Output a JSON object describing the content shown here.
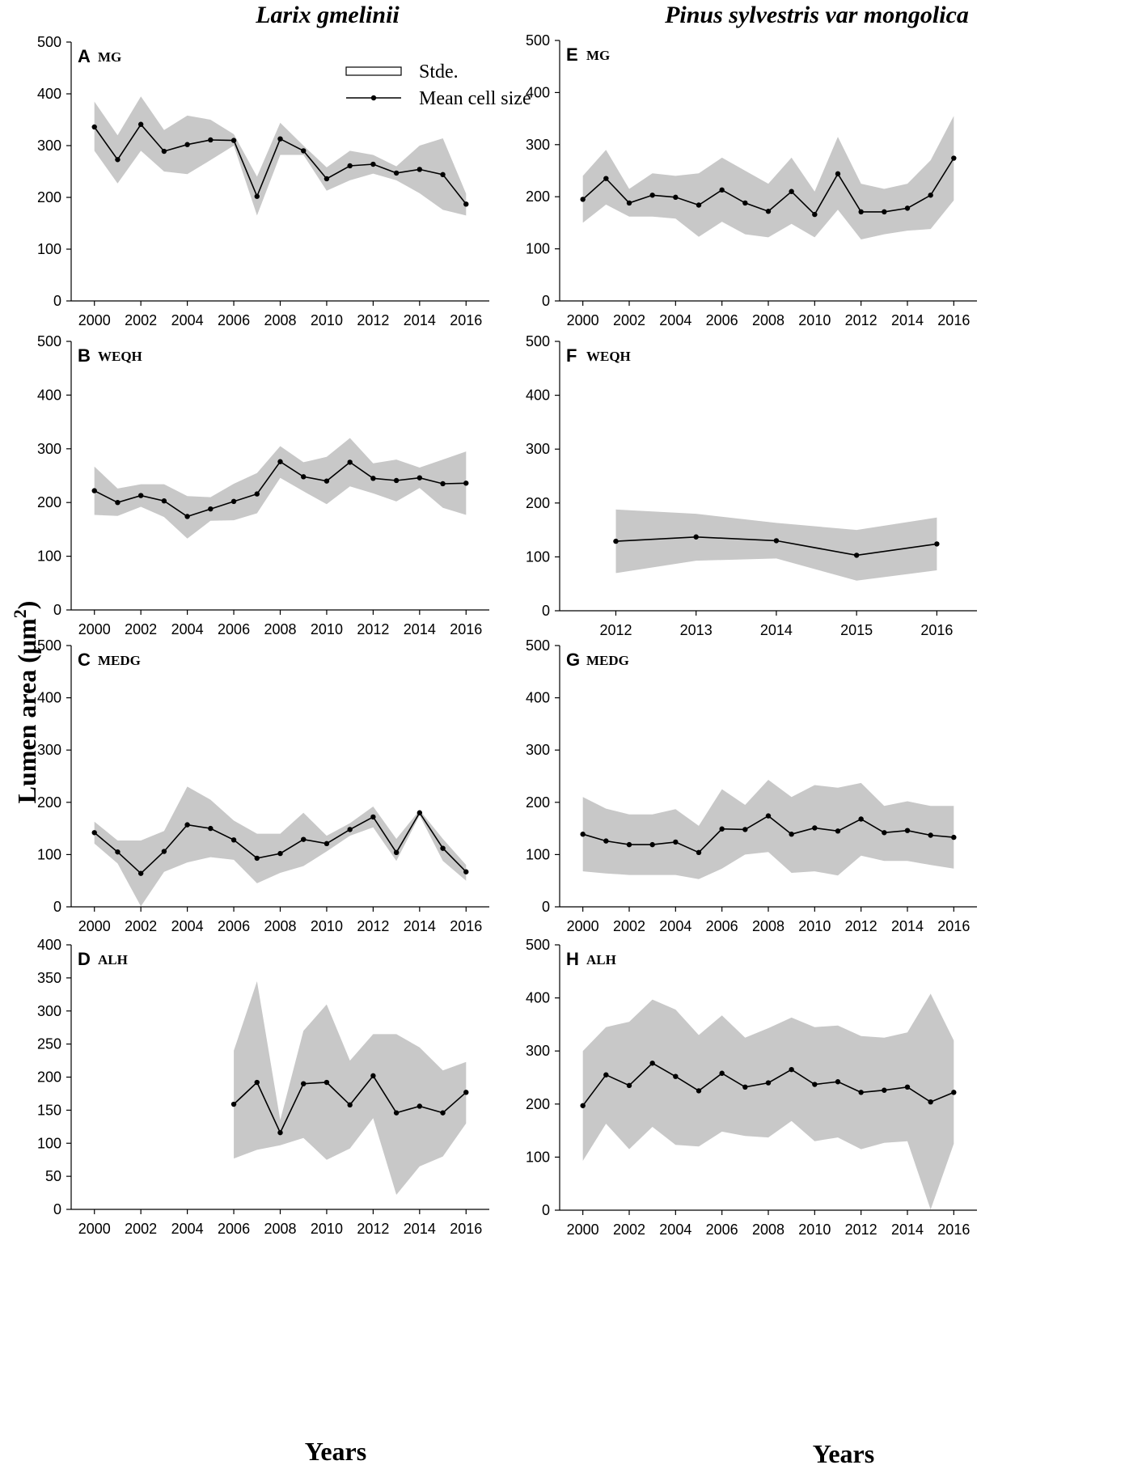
{
  "figure": {
    "column_titles": [
      "Larix gmelinii",
      "Pinus sylvestris var mongolica"
    ],
    "ylabel_text": "Lumen area (μm",
    "ylabel_sup": "2",
    "ylabel_close": ")",
    "xlabel": "Years",
    "legend": {
      "band_label": "Stde.",
      "line_label": "Mean cell size"
    }
  },
  "chart_data": [
    {
      "id": "A",
      "letter": "A",
      "site": "MG",
      "species": "Larix gmelinii",
      "type": "line",
      "xlim": [
        1999,
        2017
      ],
      "ylim": [
        0,
        500
      ],
      "xticks": [
        2000,
        2002,
        2004,
        2006,
        2008,
        2010,
        2012,
        2014,
        2016
      ],
      "yticks": [
        0,
        100,
        200,
        300,
        400,
        500
      ],
      "x": [
        2000,
        2001,
        2002,
        2003,
        2004,
        2005,
        2006,
        2007,
        2008,
        2009,
        2010,
        2011,
        2012,
        2013,
        2014,
        2015,
        2016
      ],
      "mean": [
        336,
        273,
        341,
        289,
        302,
        311,
        310,
        202,
        313,
        290,
        236,
        261,
        264,
        247,
        254,
        244,
        187
      ],
      "upper": [
        385,
        320,
        395,
        330,
        358,
        350,
        322,
        240,
        344,
        300,
        258,
        290,
        282,
        260,
        300,
        314,
        207
      ],
      "lower": [
        290,
        227,
        290,
        250,
        245,
        272,
        300,
        165,
        282,
        282,
        213,
        233,
        246,
        233,
        208,
        176,
        165
      ]
    },
    {
      "id": "B",
      "letter": "B",
      "site": "WEQH",
      "species": "Larix gmelinii",
      "type": "line",
      "xlim": [
        1999,
        2017
      ],
      "ylim": [
        0,
        500
      ],
      "xticks": [
        2000,
        2002,
        2004,
        2006,
        2008,
        2010,
        2012,
        2014,
        2016
      ],
      "yticks": [
        0,
        100,
        200,
        300,
        400,
        500
      ],
      "x": [
        2000,
        2001,
        2002,
        2003,
        2004,
        2005,
        2006,
        2007,
        2008,
        2009,
        2010,
        2011,
        2012,
        2013,
        2014,
        2015,
        2016
      ],
      "mean": [
        222,
        200,
        213,
        203,
        174,
        188,
        202,
        216,
        276,
        248,
        240,
        275,
        245,
        241,
        246,
        235,
        236
      ],
      "upper": [
        267,
        226,
        234,
        234,
        212,
        210,
        235,
        255,
        305,
        275,
        285,
        320,
        273,
        280,
        265,
        280,
        295
      ],
      "lower": [
        177,
        175,
        192,
        173,
        133,
        166,
        167,
        180,
        246,
        221,
        197,
        230,
        217,
        202,
        227,
        190,
        177
      ]
    },
    {
      "id": "C",
      "letter": "C",
      "site": "MEDG",
      "species": "Larix gmelinii",
      "type": "line",
      "xlim": [
        1999,
        2017
      ],
      "ylim": [
        0,
        500
      ],
      "xticks": [
        2000,
        2002,
        2004,
        2006,
        2008,
        2010,
        2012,
        2014,
        2016
      ],
      "yticks": [
        0,
        100,
        200,
        300,
        400,
        500
      ],
      "x": [
        2000,
        2001,
        2002,
        2003,
        2004,
        2005,
        2006,
        2007,
        2008,
        2009,
        2010,
        2011,
        2012,
        2013,
        2014,
        2015,
        2016
      ],
      "mean": [
        142,
        105,
        64,
        106,
        157,
        150,
        128,
        93,
        102,
        129,
        121,
        148,
        172,
        104,
        180,
        112,
        67
      ],
      "upper": [
        163,
        127,
        127,
        145,
        230,
        205,
        165,
        140,
        140,
        180,
        136,
        160,
        192,
        130,
        185,
        130,
        80
      ],
      "lower": [
        121,
        83,
        1,
        67,
        85,
        95,
        90,
        45,
        65,
        78,
        106,
        136,
        152,
        88,
        175,
        88,
        50
      ]
    },
    {
      "id": "D",
      "letter": "D",
      "site": "ALH",
      "species": "Larix gmelinii",
      "type": "line",
      "xlim": [
        1999,
        2017
      ],
      "ylim": [
        0,
        400
      ],
      "xticks": [
        2000,
        2002,
        2004,
        2006,
        2008,
        2010,
        2012,
        2014,
        2016
      ],
      "yticks": [
        0,
        50,
        100,
        150,
        200,
        250,
        300,
        350,
        400
      ],
      "x": [
        2006,
        2007,
        2008,
        2009,
        2010,
        2011,
        2012,
        2013,
        2014,
        2015,
        2016
      ],
      "mean": [
        159,
        192,
        116,
        190,
        192,
        158,
        202,
        146,
        156,
        146,
        177
      ],
      "upper": [
        240,
        345,
        135,
        270,
        310,
        225,
        265,
        265,
        245,
        210,
        223
      ],
      "lower": [
        77,
        90,
        97,
        108,
        75,
        92,
        138,
        22,
        65,
        80,
        130
      ]
    },
    {
      "id": "E",
      "letter": "E",
      "site": "MG",
      "species": "Pinus sylvestris var mongolica",
      "type": "line",
      "xlim": [
        1999,
        2017
      ],
      "ylim": [
        0,
        500
      ],
      "xticks": [
        2000,
        2002,
        2004,
        2006,
        2008,
        2010,
        2012,
        2014,
        2016
      ],
      "yticks": [
        0,
        100,
        200,
        300,
        400,
        500
      ],
      "x": [
        2000,
        2001,
        2002,
        2003,
        2004,
        2005,
        2006,
        2007,
        2008,
        2009,
        2010,
        2011,
        2012,
        2013,
        2014,
        2015,
        2016
      ],
      "mean": [
        195,
        235,
        188,
        203,
        199,
        184,
        213,
        188,
        172,
        210,
        166,
        244,
        171,
        171,
        178,
        203,
        274
      ],
      "upper": [
        240,
        290,
        215,
        245,
        240,
        245,
        275,
        250,
        225,
        275,
        210,
        315,
        225,
        215,
        225,
        270,
        355
      ],
      "lower": [
        150,
        185,
        162,
        162,
        158,
        123,
        152,
        128,
        122,
        148,
        122,
        175,
        118,
        128,
        135,
        138,
        193
      ]
    },
    {
      "id": "F",
      "letter": "F",
      "site": "WEQH",
      "species": "Pinus sylvestris var mongolica",
      "type": "line",
      "xlim": [
        2011.3,
        2016.5
      ],
      "ylim": [
        0,
        500
      ],
      "xticks": [
        2012,
        2013,
        2014,
        2015,
        2016
      ],
      "yticks": [
        0,
        100,
        200,
        300,
        400,
        500
      ],
      "x": [
        2012,
        2013,
        2014,
        2015,
        2016
      ],
      "mean": [
        129,
        137,
        130,
        103,
        124
      ],
      "upper": [
        188,
        180,
        163,
        150,
        173
      ],
      "lower": [
        70,
        93,
        97,
        56,
        75
      ]
    },
    {
      "id": "G",
      "letter": "G",
      "site": "MEDG",
      "species": "Pinus sylvestris var mongolica",
      "type": "line",
      "xlim": [
        1999,
        2017
      ],
      "ylim": [
        0,
        500
      ],
      "xticks": [
        2000,
        2002,
        2004,
        2006,
        2008,
        2010,
        2012,
        2014,
        2016
      ],
      "yticks": [
        0,
        100,
        200,
        300,
        400,
        500
      ],
      "x": [
        2000,
        2001,
        2002,
        2003,
        2004,
        2005,
        2006,
        2007,
        2008,
        2009,
        2010,
        2011,
        2012,
        2013,
        2014,
        2015,
        2016
      ],
      "mean": [
        139,
        126,
        119,
        119,
        124,
        104,
        149,
        148,
        174,
        139,
        151,
        145,
        168,
        142,
        146,
        137,
        133
      ],
      "upper": [
        210,
        188,
        177,
        177,
        187,
        155,
        225,
        195,
        243,
        210,
        233,
        228,
        237,
        193,
        202,
        193,
        193
      ],
      "lower": [
        68,
        64,
        61,
        61,
        61,
        53,
        73,
        100,
        105,
        65,
        68,
        60,
        98,
        88,
        88,
        80,
        73
      ]
    },
    {
      "id": "H",
      "letter": "H",
      "site": "ALH",
      "species": "Pinus sylvestris var mongolica",
      "type": "line",
      "xlim": [
        1999,
        2017
      ],
      "ylim": [
        0,
        500
      ],
      "xticks": [
        2000,
        2002,
        2004,
        2006,
        2008,
        2010,
        2012,
        2014,
        2016
      ],
      "yticks": [
        0,
        100,
        200,
        300,
        400,
        500
      ],
      "x": [
        2000,
        2001,
        2002,
        2003,
        2004,
        2005,
        2006,
        2007,
        2008,
        2009,
        2010,
        2011,
        2012,
        2013,
        2014,
        2015,
        2016
      ],
      "mean": [
        197,
        255,
        235,
        277,
        252,
        225,
        258,
        232,
        240,
        265,
        237,
        242,
        222,
        226,
        232,
        204,
        222
      ],
      "upper": [
        300,
        345,
        355,
        397,
        378,
        330,
        367,
        325,
        343,
        363,
        345,
        348,
        328,
        325,
        335,
        408,
        320
      ],
      "lower": [
        93,
        163,
        115,
        157,
        123,
        120,
        148,
        140,
        137,
        168,
        130,
        137,
        115,
        127,
        130,
        1,
        125
      ]
    }
  ]
}
